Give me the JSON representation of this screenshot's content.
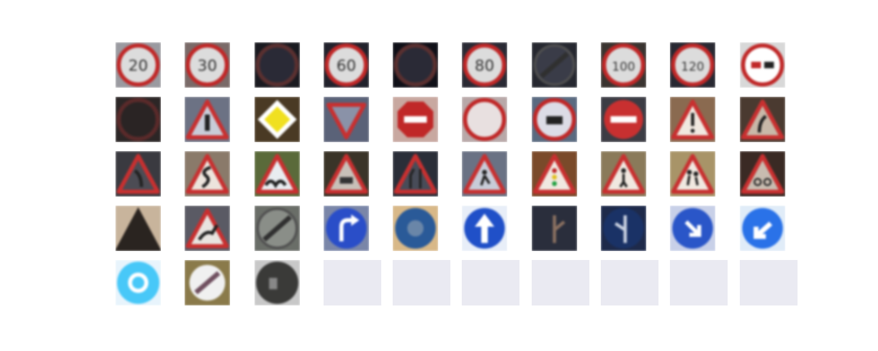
{
  "grid": {
    "rows": 5,
    "columns": 10,
    "empty_cell_color": "#eaeaf2"
  },
  "tiles": [
    {
      "sign": "speed-limit-20",
      "label": "20",
      "bg": "#9a9aa0"
    },
    {
      "sign": "speed-limit-30",
      "label": "30",
      "bg": "#7a6a68"
    },
    {
      "sign": "speed-limit-50-dark",
      "label": "",
      "bg": "#1a1a20"
    },
    {
      "sign": "speed-limit-60",
      "label": "60",
      "bg": "#22222c"
    },
    {
      "sign": "speed-limit-70-dark",
      "label": "",
      "bg": "#101018"
    },
    {
      "sign": "speed-limit-80",
      "label": "80",
      "bg": "#2a2a34"
    },
    {
      "sign": "end-speed-limit-80",
      "label": "",
      "bg": "#262830"
    },
    {
      "sign": "speed-limit-100",
      "label": "100",
      "bg": "#3a3430"
    },
    {
      "sign": "speed-limit-120",
      "label": "120",
      "bg": "#282832"
    },
    {
      "sign": "no-passing",
      "label": "",
      "bg": "#d8d8d8"
    },
    {
      "sign": "no-passing-trucks",
      "label": "",
      "bg": "#2c2626"
    },
    {
      "sign": "right-of-way-next-intersection",
      "label": "",
      "bg": "#6c7284"
    },
    {
      "sign": "priority-road",
      "label": "",
      "bg": "#4a3a24"
    },
    {
      "sign": "yield",
      "label": "",
      "bg": "#5a6278"
    },
    {
      "sign": "stop",
      "label": "",
      "bg": "#c8a8a0"
    },
    {
      "sign": "no-vehicles",
      "label": "",
      "bg": "#b8a8a8"
    },
    {
      "sign": "no-trucks",
      "label": "",
      "bg": "#5a6a80"
    },
    {
      "sign": "no-entry",
      "label": "",
      "bg": "#3c3c44"
    },
    {
      "sign": "general-caution",
      "label": "",
      "bg": "#8a6a50"
    },
    {
      "sign": "dangerous-curve-left",
      "label": "",
      "bg": "#4a3a30"
    },
    {
      "sign": "dangerous-curve-right",
      "label": "",
      "bg": "#3a3a40"
    },
    {
      "sign": "double-curve",
      "label": "",
      "bg": "#8a7a6a"
    },
    {
      "sign": "bumpy-road",
      "label": "",
      "bg": "#5a6a3a"
    },
    {
      "sign": "slippery-road",
      "label": "",
      "bg": "#3a3428"
    },
    {
      "sign": "road-narrows",
      "label": "",
      "bg": "#2a2e38"
    },
    {
      "sign": "road-work",
      "label": "",
      "bg": "#6a7284"
    },
    {
      "sign": "traffic-signals",
      "label": "",
      "bg": "#7a4a2a"
    },
    {
      "sign": "pedestrians",
      "label": "",
      "bg": "#8a7a5a"
    },
    {
      "sign": "children-crossing",
      "label": "",
      "bg": "#a89468"
    },
    {
      "sign": "bicycles-crossing",
      "label": "",
      "bg": "#3a2a24"
    },
    {
      "sign": "beware-ice",
      "label": "",
      "bg": "#c8b49c"
    },
    {
      "sign": "wild-animals",
      "label": "",
      "bg": "#5a5a64"
    },
    {
      "sign": "end-all-limits",
      "label": "",
      "bg": "#6a6e68"
    },
    {
      "sign": "turn-right-ahead",
      "label": "",
      "bg": "#7a86a8"
    },
    {
      "sign": "turn-left-ahead",
      "label": "",
      "bg": "#d8b888"
    },
    {
      "sign": "ahead-only",
      "label": "",
      "bg": "#e8eef8"
    },
    {
      "sign": "straight-or-right",
      "label": "",
      "bg": "#282c3a"
    },
    {
      "sign": "straight-or-left",
      "label": "",
      "bg": "#1e2a4a"
    },
    {
      "sign": "keep-right",
      "label": "",
      "bg": "#c8d0e8"
    },
    {
      "sign": "keep-left",
      "label": "",
      "bg": "#e0ecf8"
    },
    {
      "sign": "roundabout",
      "label": "",
      "bg": "#e8f4fc"
    },
    {
      "sign": "end-no-passing",
      "label": "",
      "bg": "#8a7a4a"
    },
    {
      "sign": "end-no-passing-trucks",
      "label": "",
      "bg": "#c8c8c8"
    },
    {
      "sign": "empty",
      "label": "",
      "bg": ""
    },
    {
      "sign": "empty",
      "label": "",
      "bg": ""
    },
    {
      "sign": "empty",
      "label": "",
      "bg": ""
    },
    {
      "sign": "empty",
      "label": "",
      "bg": ""
    },
    {
      "sign": "empty",
      "label": "",
      "bg": ""
    },
    {
      "sign": "empty",
      "label": "",
      "bg": ""
    },
    {
      "sign": "empty",
      "label": "",
      "bg": ""
    }
  ]
}
